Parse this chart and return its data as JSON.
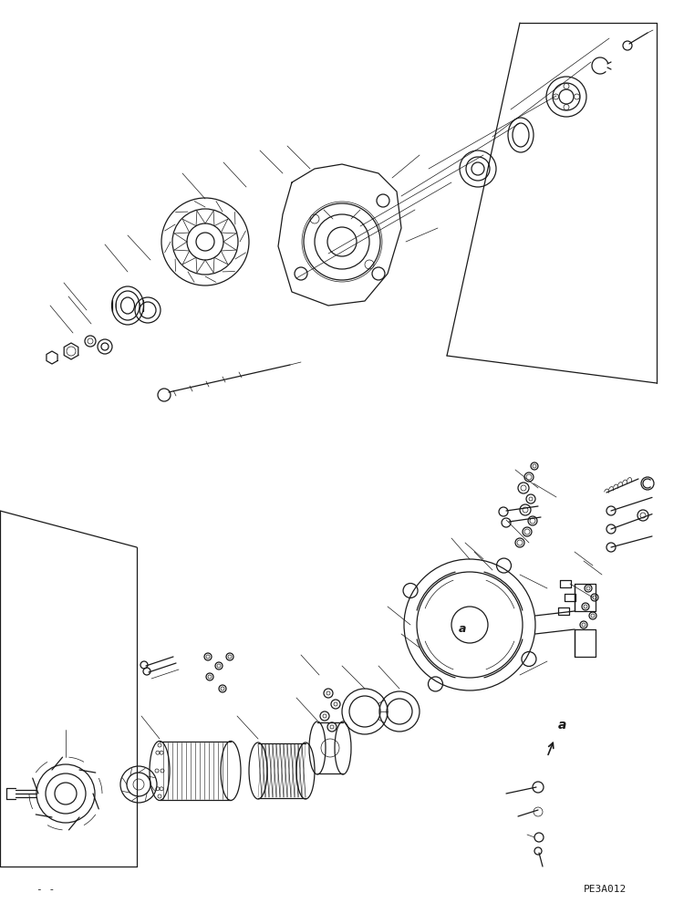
{
  "bg_color": "#ffffff",
  "line_color": "#1a1a1a",
  "fig_width": 7.5,
  "fig_height": 9.9,
  "dpi": 100,
  "bottom_left_text": "- -",
  "bottom_right_text": "PE3A012",
  "label_a": "a"
}
